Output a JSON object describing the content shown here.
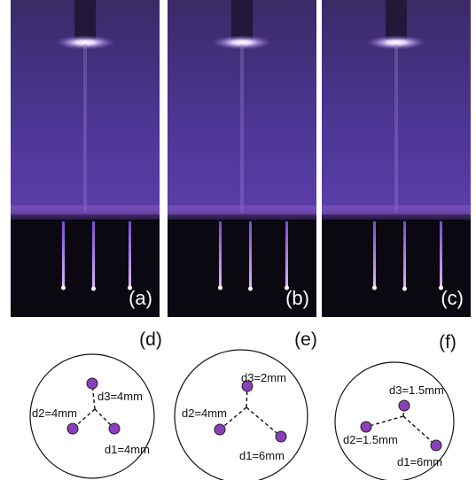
{
  "panels": [
    {
      "label": "(a)"
    },
    {
      "label": "(b)"
    },
    {
      "label": "(c)"
    }
  ],
  "diagrams": [
    {
      "label": "(d)",
      "d1": "d1=4mm",
      "d2": "d2=4mm",
      "d3": "d3=4mm"
    },
    {
      "label": "(e)",
      "d1": "d1=6mm",
      "d2": "d2=4mm",
      "d3": "d3=2mm"
    },
    {
      "label": "(f)",
      "d1": "d1=6mm",
      "d2": "d2=1.5mm",
      "d3": "d3=1.5mm"
    }
  ]
}
